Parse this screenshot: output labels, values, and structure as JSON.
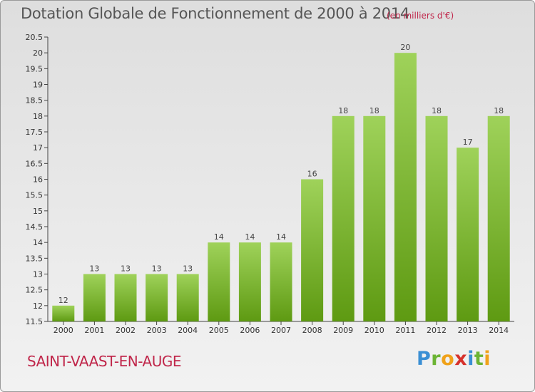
{
  "header": {
    "title": "Dotation Globale de Fonctionnement de 2000 à 2014",
    "unit": "(en milliers d'€)"
  },
  "footer": {
    "commune": "SAINT-VAAST-EN-AUGE",
    "logo": {
      "p": "P",
      "r": "r",
      "o": "o",
      "x": "x",
      "i": "i",
      "t": "t",
      "i2": "i"
    }
  },
  "colors": {
    "bar_light": "#9fd25a",
    "bar_dark": "#5e9a12",
    "accent": "#c0264a"
  },
  "chart_data": {
    "type": "bar",
    "categories": [
      "2000",
      "2001",
      "2002",
      "2003",
      "2004",
      "2005",
      "2006",
      "2007",
      "2008",
      "2009",
      "2010",
      "2011",
      "2012",
      "2013",
      "2014"
    ],
    "values": [
      12,
      13,
      13,
      13,
      13,
      14,
      14,
      14,
      16,
      18,
      18,
      20,
      18,
      17,
      18
    ],
    "data_labels": [
      "12",
      "13",
      "13",
      "13",
      "13",
      "14",
      "14",
      "14",
      "16",
      "18",
      "18",
      "20",
      "18",
      "17",
      "18"
    ],
    "ylim": [
      11.5,
      20.5
    ],
    "yticks": [
      11.5,
      12,
      12.5,
      13,
      13.5,
      14,
      14.5,
      15,
      15.5,
      16,
      16.5,
      17,
      17.5,
      18,
      18.5,
      19,
      19.5,
      20,
      20.5
    ],
    "ytick_labels": [
      "11.5",
      "12",
      "12.5",
      "13",
      "13.5",
      "14",
      "14.5",
      "15",
      "15.5",
      "16",
      "16.5",
      "17",
      "17.5",
      "18",
      "18.5",
      "19",
      "19.5",
      "20",
      "20.5"
    ],
    "grid": false,
    "legend": "none"
  }
}
